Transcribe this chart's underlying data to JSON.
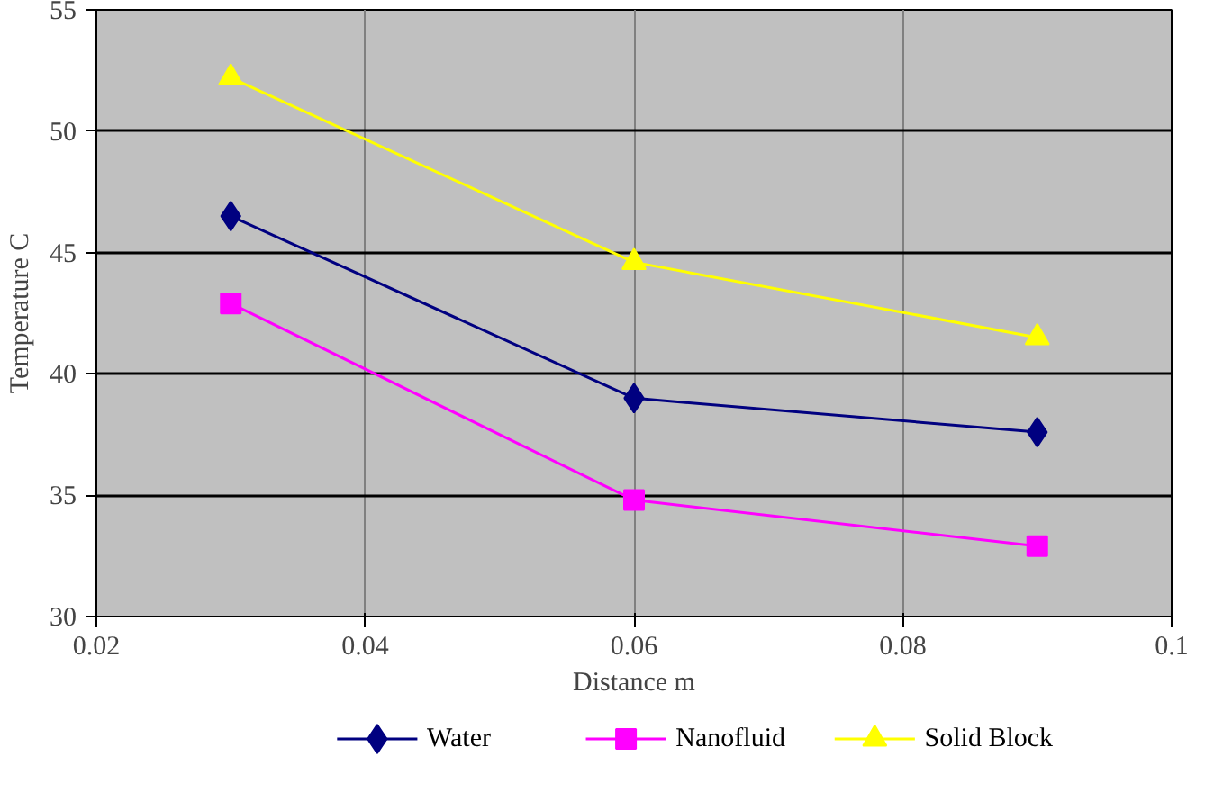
{
  "chart_data": {
    "type": "line",
    "xlabel": "Distance m",
    "ylabel": "Temperature C",
    "x": [
      0.03,
      0.06,
      0.09
    ],
    "series": [
      {
        "name": "Water",
        "color": "#000080",
        "marker": "diamond",
        "values": [
          46.5,
          39.0,
          37.6
        ]
      },
      {
        "name": "Nanofluid",
        "color": "#ff00ff",
        "marker": "square",
        "values": [
          42.9,
          34.8,
          32.9
        ]
      },
      {
        "name": "Solid Block",
        "color": "#ffff00",
        "marker": "triangle",
        "values": [
          52.2,
          44.6,
          41.5
        ]
      }
    ],
    "xlim": [
      0.02,
      0.1
    ],
    "xticks": [
      0.02,
      0.04,
      0.06,
      0.08,
      0.1
    ],
    "ylim": [
      30,
      55
    ],
    "yticks": [
      30,
      35,
      40,
      45,
      50,
      55
    ],
    "grid": true,
    "legend": "bottom",
    "line_style": "solid"
  }
}
